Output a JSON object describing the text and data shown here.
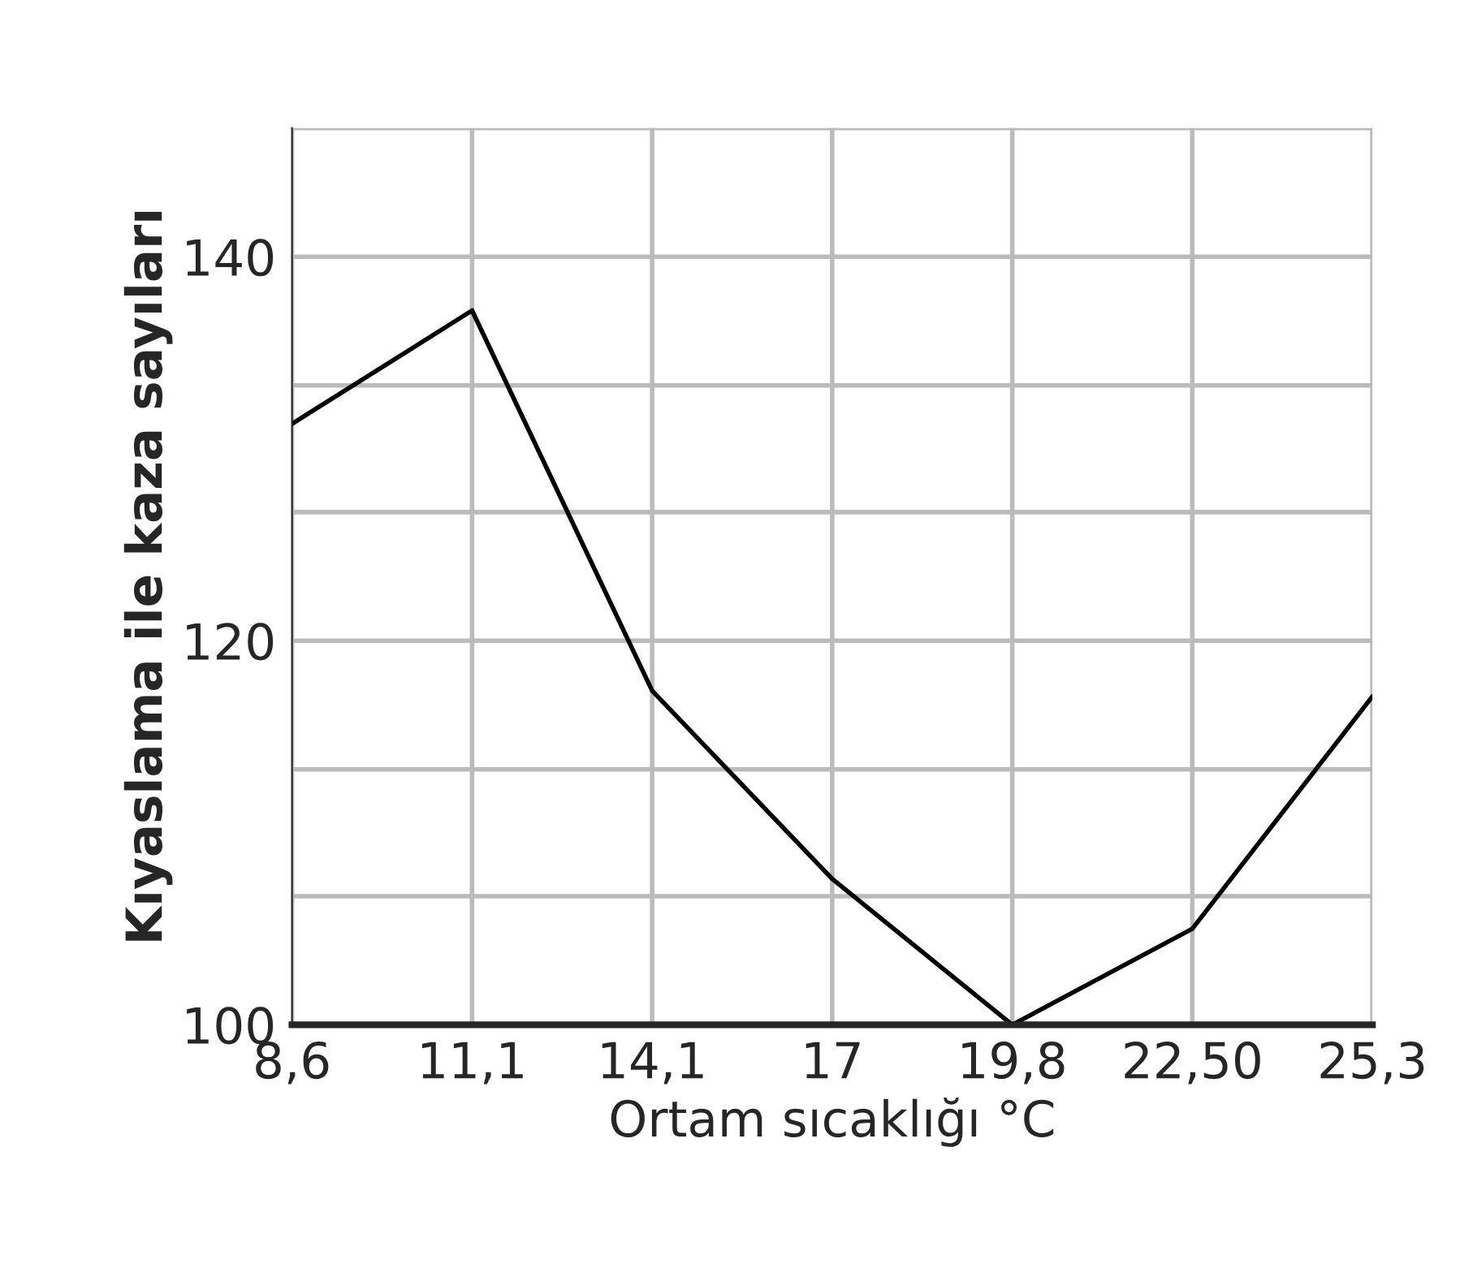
{
  "chart_data": {
    "type": "line",
    "xlabel": "Ortam sıcaklığı °C",
    "ylabel": "Kıyaslama ile kaza sayıları",
    "categories": [
      "8,6",
      "11,1",
      "14,1",
      "17",
      "19,8",
      "22,50",
      "25,3"
    ],
    "series": [
      {
        "color": "#000000",
        "values": [
          131.3,
          137.2,
          117.4,
          107.6,
          100,
          105,
          117.1
        ]
      }
    ],
    "ylim": [
      100,
      146.7
    ],
    "yticks": [
      100,
      {
        "value": 106.7,
        "label": null
      },
      {
        "value": 113.3,
        "label": null
      },
      120,
      {
        "value": 126.7,
        "label": null
      },
      {
        "value": 133.3,
        "label": null
      },
      140,
      {
        "value": 146.7,
        "label": null
      }
    ],
    "grid": true,
    "marker": "none",
    "line_style": "solid"
  }
}
